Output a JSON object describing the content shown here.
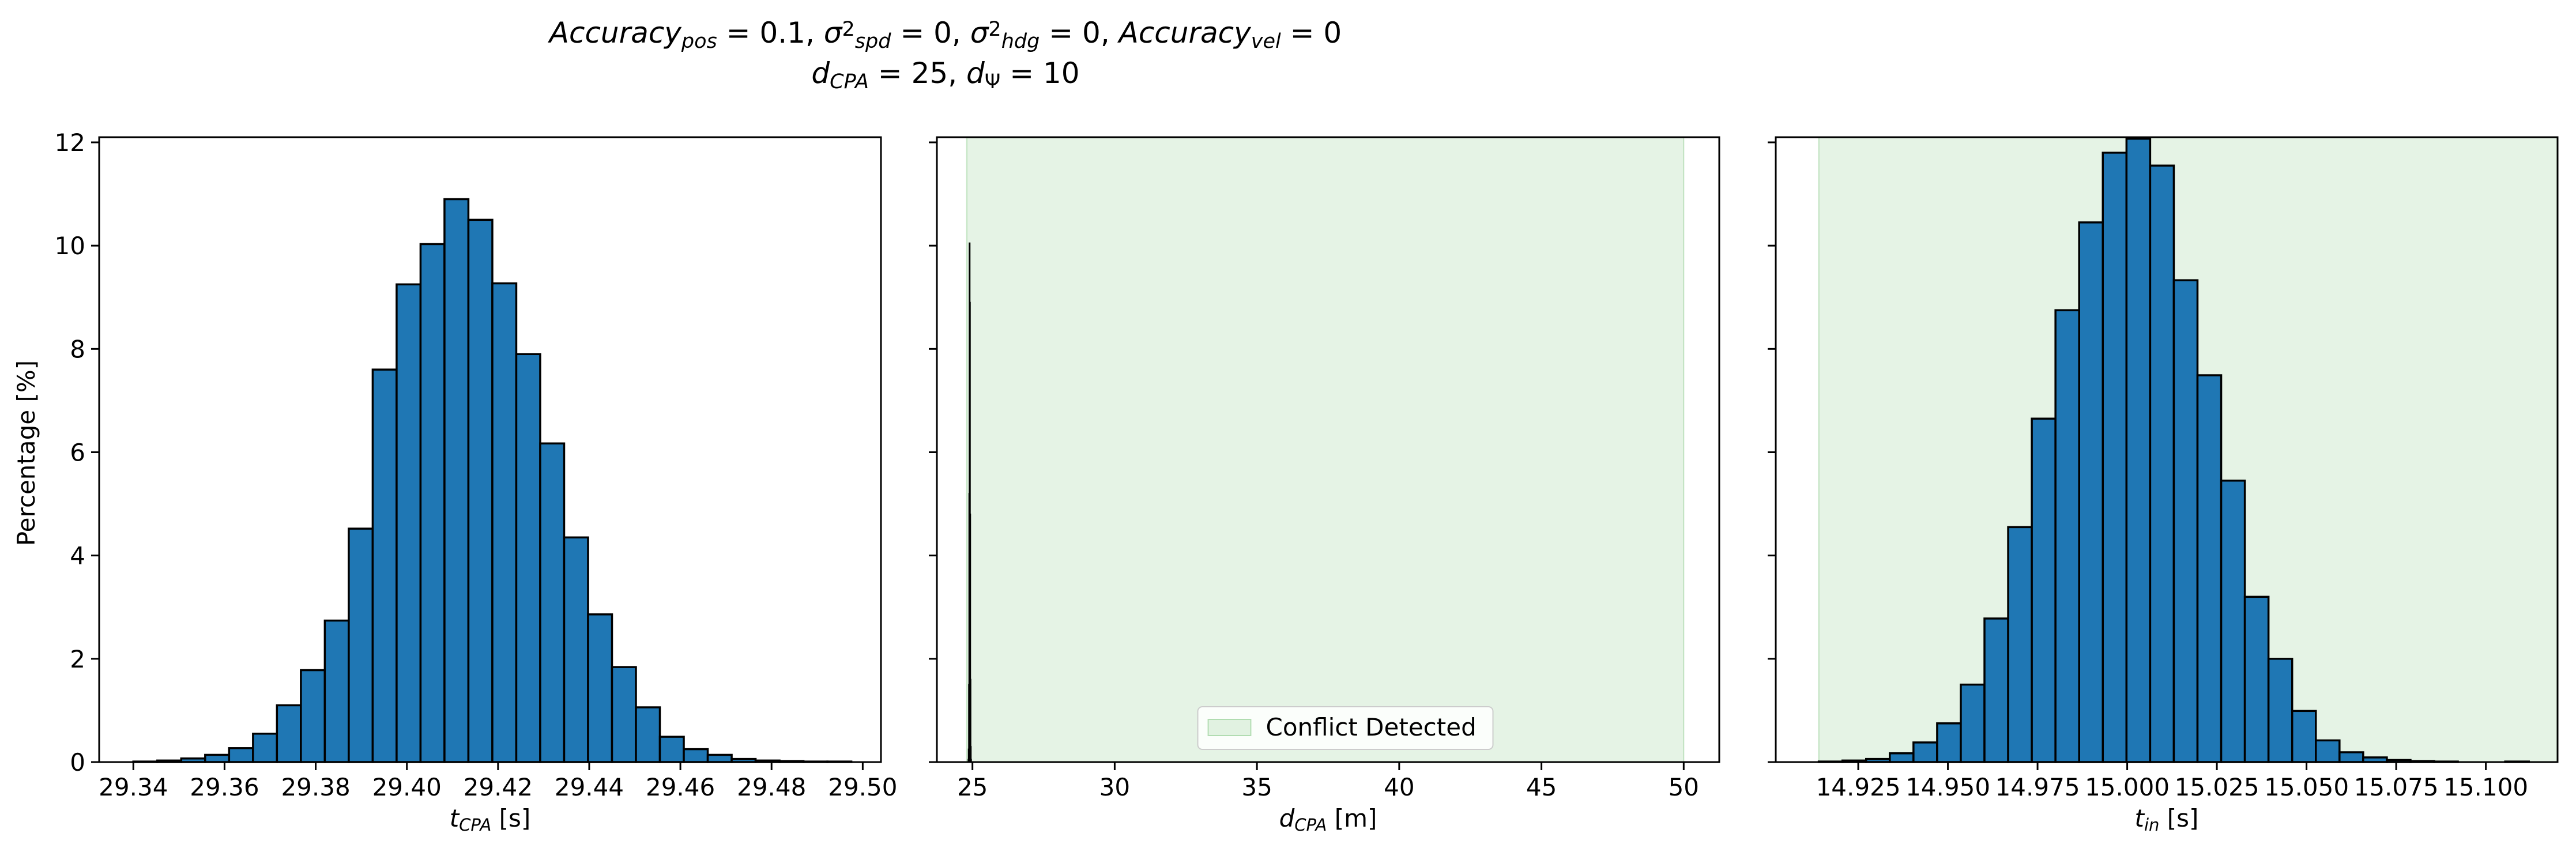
{
  "figure": {
    "title_line1": {
      "parts": [
        {
          "t": "Accuracy",
          "style": "it"
        },
        {
          "t": "pos",
          "style": "sub-it"
        },
        {
          "t": " = 0.1, "
        },
        {
          "t": "σ",
          "style": "it"
        },
        {
          "t": "2",
          "style": "sup"
        },
        {
          "t": "spd",
          "style": "sub-it"
        },
        {
          "t": " = 0, "
        },
        {
          "t": "σ",
          "style": "it"
        },
        {
          "t": "2",
          "style": "sup"
        },
        {
          "t": "hdg",
          "style": "sub-it"
        },
        {
          "t": " = 0, "
        },
        {
          "t": "Accuracy",
          "style": "it"
        },
        {
          "t": "vel",
          "style": "sub-it"
        },
        {
          "t": " = 0"
        }
      ]
    },
    "title_line2": {
      "parts": [
        {
          "t": "d",
          "style": "it"
        },
        {
          "t": "CPA",
          "style": "sub-it"
        },
        {
          "t": " = 25, "
        },
        {
          "t": "d",
          "style": "it"
        },
        {
          "t": "Ψ",
          "style": "sub"
        },
        {
          "t": " = 10"
        }
      ]
    },
    "ylabel": "Percentage [%]",
    "colors": {
      "bar": "#1f77b4",
      "edge": "#000000",
      "conflict_fill": "#2ca02c",
      "axis": "#000000"
    }
  },
  "chart_data": [
    {
      "type": "bar",
      "xlabel_parts": [
        {
          "t": "t",
          "style": "it"
        },
        {
          "t": "CPA",
          "style": "sub-it"
        },
        {
          "t": " [s]"
        }
      ],
      "xlim": [
        29.3325,
        29.504
      ],
      "ylim": [
        0,
        12.1
      ],
      "xticks": [
        29.34,
        29.36,
        29.38,
        29.4,
        29.42,
        29.44,
        29.46,
        29.48,
        29.5
      ],
      "xtick_labels": [
        "29.34",
        "29.36",
        "29.38",
        "29.40",
        "29.42",
        "29.44",
        "29.46",
        "29.48",
        "29.50"
      ],
      "yticks": [
        0,
        2,
        4,
        6,
        8,
        10,
        12
      ],
      "ytick_labels": [
        "0",
        "2",
        "4",
        "6",
        "8",
        "10",
        "12"
      ],
      "bin_start": 29.34,
      "bin_width": 0.00525,
      "values": [
        0.01,
        0.03,
        0.07,
        0.14,
        0.27,
        0.55,
        1.1,
        1.78,
        2.74,
        4.52,
        7.6,
        9.25,
        10.03,
        10.9,
        10.5,
        9.27,
        7.9,
        6.17,
        4.35,
        2.86,
        1.84,
        1.06,
        0.49,
        0.25,
        0.14,
        0.06,
        0.03,
        0.02,
        0.01,
        0.01
      ],
      "show_yticklabels": true
    },
    {
      "type": "bar",
      "xlabel_parts": [
        {
          "t": "d",
          "style": "it"
        },
        {
          "t": "CPA",
          "style": "sub-it"
        },
        {
          "t": " [m]"
        }
      ],
      "xlim": [
        23.75,
        51.25
      ],
      "ylim": [
        0,
        12.1
      ],
      "xticks": [
        25,
        30,
        35,
        40,
        45,
        50
      ],
      "xtick_labels": [
        "25",
        "30",
        "35",
        "40",
        "45",
        "50"
      ],
      "yticks": [
        0,
        2,
        4,
        6,
        8,
        10,
        12
      ],
      "bin_start": 24.85,
      "bin_width": 0.01,
      "values": [
        0.05,
        0.25,
        1.5,
        5.2,
        10.05,
        8.9,
        4.8,
        1.6,
        0.3,
        0.05
      ],
      "conflict_region": [
        24.8,
        50.0
      ],
      "legend": {
        "label": "Conflict Detected",
        "placement": "lower center"
      },
      "show_yticklabels": false
    },
    {
      "type": "bar",
      "xlabel_parts": [
        {
          "t": "t",
          "style": "it"
        },
        {
          "t": "in",
          "style": "sub-it"
        },
        {
          "t": " [s]"
        }
      ],
      "xlim": [
        14.902,
        15.12
      ],
      "ylim": [
        0,
        12.1
      ],
      "xticks": [
        14.925,
        14.95,
        14.975,
        15.0,
        15.025,
        15.05,
        15.075,
        15.1
      ],
      "xtick_labels": [
        "14.925",
        "14.950",
        "14.975",
        "15.000",
        "15.025",
        "15.050",
        "15.075",
        "15.100"
      ],
      "yticks": [
        0,
        2,
        4,
        6,
        8,
        10,
        12
      ],
      "bin_start": 14.914,
      "bin_width": 0.0066,
      "values": [
        0.01,
        0.03,
        0.06,
        0.17,
        0.38,
        0.75,
        1.5,
        2.78,
        4.55,
        6.65,
        8.75,
        10.45,
        11.8,
        12.07,
        11.55,
        9.33,
        7.49,
        5.45,
        3.2,
        2.0,
        0.99,
        0.42,
        0.19,
        0.09,
        0.04,
        0.02,
        0.01,
        0.0,
        0.0,
        0.01
      ],
      "conflict_region": [
        14.914,
        15.12
      ],
      "show_yticklabels": false
    }
  ]
}
